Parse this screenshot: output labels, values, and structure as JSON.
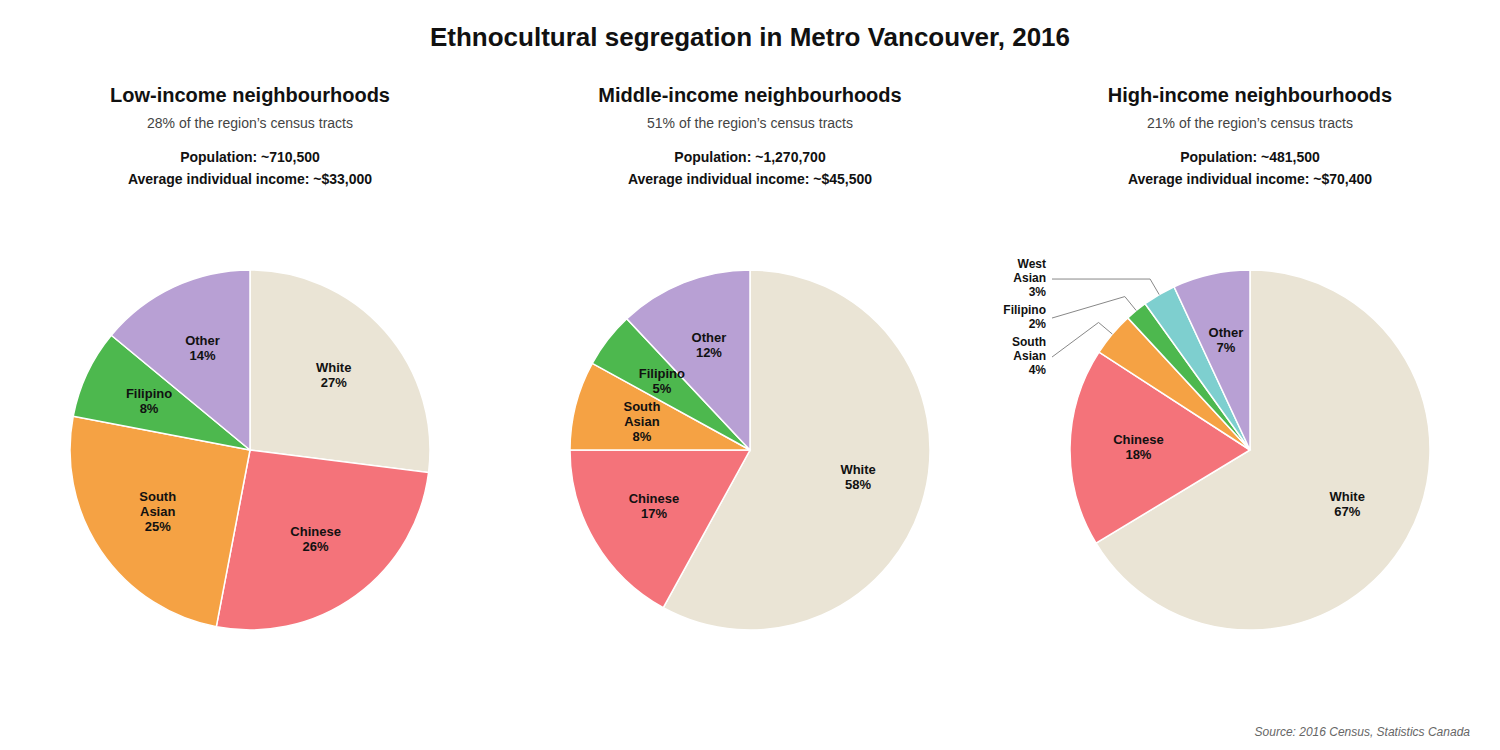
{
  "title": "Ethnocultural segregation in Metro Vancouver, 2016",
  "annotations": [
    "Source: 2016 Census, Statistics Canada"
  ],
  "chart_data": [
    {
      "type": "pie",
      "title": "Low-income neighbourhoods",
      "subtitle": "28% of the region’s census tracts",
      "annotations": [
        "Population: ~710,500",
        "Average individual income: ~$33,000"
      ],
      "categories": [
        "White",
        "Chinese",
        "South\nAsian",
        "Filipino",
        "Other"
      ],
      "values": [
        27,
        26,
        25,
        8,
        14
      ],
      "value_labels": [
        "27%",
        "26%",
        "25%",
        "8%",
        "14%"
      ],
      "colors": [
        "#eae4d5",
        "#f4737a",
        "#f5a244",
        "#4db84e",
        "#b8a0d4"
      ],
      "data_labels": true
    },
    {
      "type": "pie",
      "title": "Middle-income neighbourhoods",
      "subtitle": "51% of the region’s census tracts",
      "annotations": [
        "Population: ~1,270,700",
        "Average individual income: ~$45,500"
      ],
      "categories": [
        "White",
        "Chinese",
        "South\nAsian",
        "Filipino",
        "Other"
      ],
      "values": [
        58,
        17,
        8,
        5,
        12
      ],
      "value_labels": [
        "58%",
        "17%",
        "8%",
        "5%",
        "12%"
      ],
      "colors": [
        "#eae4d5",
        "#f4737a",
        "#f5a244",
        "#4db84e",
        "#b8a0d4"
      ],
      "data_labels": true
    },
    {
      "type": "pie",
      "title": "High-income neighbourhoods",
      "subtitle": "21% of the region’s census tracts",
      "annotations": [
        "Population: ~481,500",
        "Average individual income: ~$70,400"
      ],
      "categories": [
        "White",
        "Chinese",
        "South\nAsian",
        "Filipino",
        "West\nAsian",
        "Other"
      ],
      "values": [
        67,
        18,
        4,
        2,
        3,
        7
      ],
      "value_labels": [
        "67%",
        "18%",
        "4%",
        "2%",
        "3%",
        "7%"
      ],
      "colors": [
        "#eae4d5",
        "#f4737a",
        "#f5a244",
        "#4db84e",
        "#7ecfcf",
        "#b8a0d4"
      ],
      "data_labels": true
    }
  ]
}
